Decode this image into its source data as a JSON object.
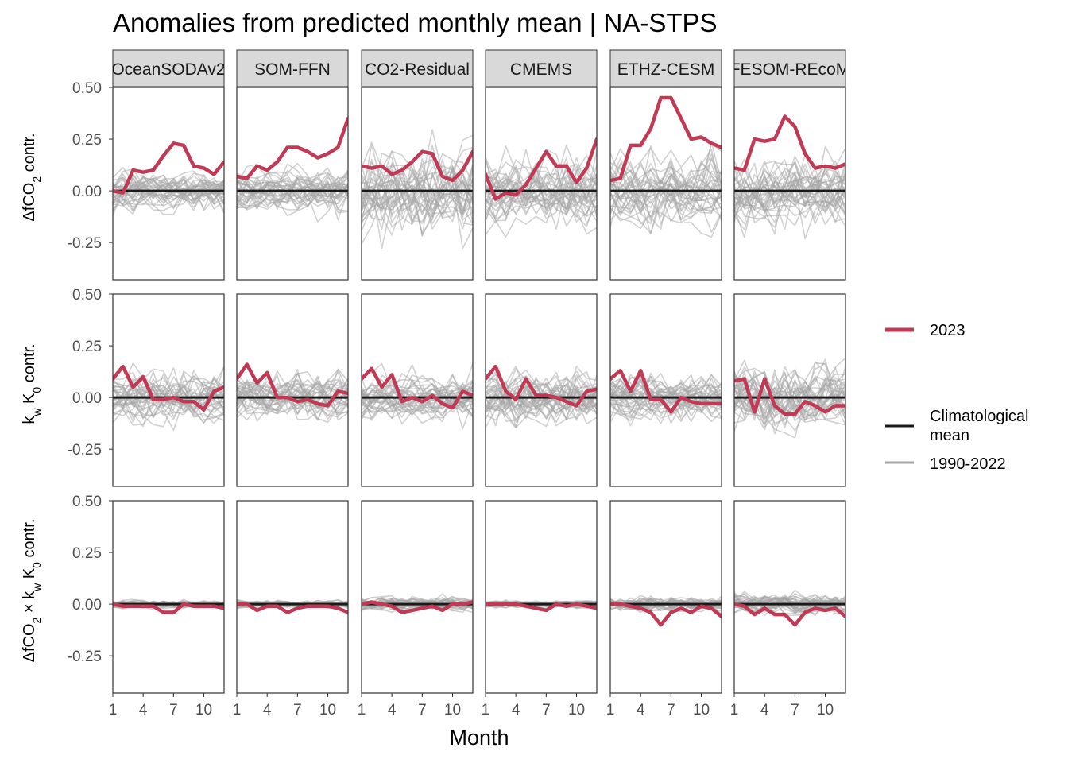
{
  "chart_data": {
    "type": "line",
    "title": "Anomalies from predicted monthly mean | NA-STPS",
    "xlabel": "Month",
    "x": [
      1,
      2,
      3,
      4,
      5,
      6,
      7,
      8,
      9,
      10,
      11,
      12
    ],
    "xticks": [
      1,
      4,
      7,
      10
    ],
    "xtick_labels": [
      "1",
      "4",
      "7",
      "10"
    ],
    "xlim": [
      1,
      12
    ],
    "ylim": [
      -0.43,
      0.5
    ],
    "yticks": [
      -0.25,
      0,
      0.25,
      0.5
    ],
    "ytick_labels": [
      "-0.25",
      "0.00",
      "0.25",
      "0.50"
    ],
    "grid": false,
    "legend_position": "right",
    "colors": {
      "highlight": "#C13A55",
      "climatology": "#1a1a1a",
      "background_years": "#a6a6a6",
      "strip_fill": "#d9d9d9"
    },
    "products": [
      "OceanSODAv2",
      "SOM-FFN",
      "CO2-Residual",
      "CMEMS",
      "ETHZ-CESM",
      "FESOM-REcoM"
    ],
    "rows": [
      {
        "label_parts": [
          "ΔfCO",
          "2",
          " contr."
        ],
        "series_2023": [
          [
            0.0,
            -0.01,
            0.1,
            0.09,
            0.1,
            0.17,
            0.23,
            0.22,
            0.12,
            0.11,
            0.08,
            0.14
          ],
          [
            0.07,
            0.06,
            0.12,
            0.1,
            0.14,
            0.21,
            0.21,
            0.19,
            0.16,
            0.18,
            0.21,
            0.35
          ],
          [
            0.12,
            0.11,
            0.12,
            0.08,
            0.1,
            0.14,
            0.19,
            0.18,
            0.07,
            0.05,
            0.1,
            0.19
          ],
          [
            0.08,
            -0.04,
            -0.01,
            -0.02,
            0.03,
            0.11,
            0.19,
            0.12,
            0.12,
            0.04,
            0.11,
            0.25
          ],
          [
            0.05,
            0.06,
            0.22,
            0.22,
            0.3,
            0.45,
            0.45,
            0.35,
            0.25,
            0.26,
            0.23,
            0.21
          ],
          [
            0.11,
            0.1,
            0.25,
            0.24,
            0.25,
            0.36,
            0.31,
            0.18,
            0.11,
            0.12,
            0.11,
            0.13
          ]
        ],
        "spread": [
          0.05,
          0.06,
          0.12,
          0.09,
          0.09,
          0.1
        ]
      },
      {
        "label_parts": [
          "k",
          "w",
          " K",
          "0",
          " contr."
        ],
        "series_2023": [
          [
            0.09,
            0.15,
            0.05,
            0.1,
            -0.01,
            -0.01,
            0.0,
            -0.02,
            -0.02,
            -0.06,
            0.03,
            0.05
          ],
          [
            0.09,
            0.16,
            0.07,
            0.12,
            0.0,
            0.0,
            -0.02,
            -0.01,
            -0.03,
            -0.04,
            0.03,
            0.02
          ],
          [
            0.09,
            0.14,
            0.05,
            0.11,
            -0.02,
            0.0,
            -0.02,
            0.01,
            -0.03,
            -0.05,
            0.03,
            0.01
          ],
          [
            0.09,
            0.15,
            0.03,
            -0.01,
            0.09,
            0.01,
            0.01,
            0.0,
            -0.02,
            -0.04,
            0.03,
            0.04
          ],
          [
            0.09,
            0.13,
            0.03,
            0.13,
            -0.01,
            -0.01,
            -0.07,
            0.0,
            -0.02,
            -0.03,
            -0.03,
            -0.03
          ],
          [
            0.08,
            0.09,
            -0.07,
            0.09,
            -0.04,
            -0.08,
            -0.08,
            -0.02,
            -0.04,
            -0.07,
            -0.04,
            -0.04
          ]
        ],
        "spread": [
          0.07,
          0.06,
          0.06,
          0.07,
          0.06,
          0.09
        ]
      },
      {
        "label_parts": [
          "ΔfCO",
          "2",
          " × k",
          "w",
          " K",
          "0",
          " contr."
        ],
        "series_2023": [
          [
            0.0,
            -0.01,
            -0.01,
            -0.01,
            -0.01,
            -0.04,
            -0.04,
            0.0,
            -0.01,
            -0.01,
            -0.01,
            -0.02
          ],
          [
            0.0,
            0.0,
            -0.03,
            -0.01,
            -0.01,
            -0.04,
            -0.02,
            -0.01,
            -0.01,
            -0.01,
            -0.02,
            -0.04
          ],
          [
            0.0,
            0.01,
            0.0,
            -0.01,
            -0.04,
            -0.03,
            -0.02,
            -0.01,
            -0.03,
            0.0,
            0.0,
            0.01
          ],
          [
            0.0,
            0.0,
            0.0,
            0.0,
            -0.01,
            -0.02,
            -0.03,
            0.0,
            -0.01,
            0.0,
            -0.01,
            -0.02
          ],
          [
            0.0,
            0.0,
            -0.01,
            -0.02,
            -0.04,
            -0.1,
            -0.04,
            -0.02,
            -0.04,
            -0.01,
            -0.02,
            -0.06
          ],
          [
            0.0,
            -0.01,
            -0.05,
            -0.02,
            -0.05,
            -0.05,
            -0.1,
            -0.04,
            -0.02,
            -0.03,
            -0.02,
            -0.06
          ]
        ],
        "spread": [
          0.01,
          0.01,
          0.02,
          0.01,
          0.02,
          0.03
        ]
      }
    ],
    "legend": {
      "highlight_label": "2023",
      "climatology_label_lines": [
        "Climatological",
        "mean"
      ],
      "background_label": "1990-2022"
    }
  }
}
